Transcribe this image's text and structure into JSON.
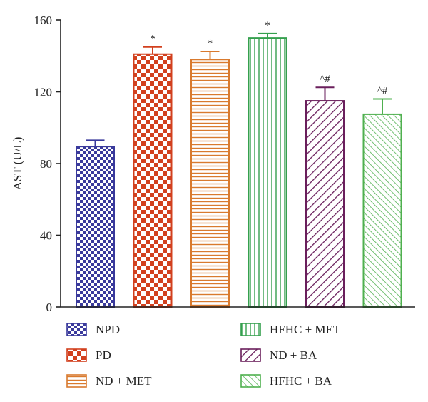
{
  "chart_data": {
    "type": "bar",
    "ylabel": "AST (U/L)",
    "xlabel": "",
    "ylim": [
      0,
      160
    ],
    "yticks": [
      0,
      40,
      80,
      120,
      160
    ],
    "grid": false,
    "legend_position": "bottom",
    "categories": [
      "NPD",
      "PD",
      "ND + MET",
      "HFHC + MET",
      "ND + BA",
      "HFHC + BA"
    ],
    "values": [
      89.5,
      141,
      138,
      150,
      115,
      107.5
    ],
    "errors": [
      3.5,
      4,
      4.5,
      2.5,
      7.5,
      8.5
    ],
    "annotations": [
      "",
      "*",
      "*",
      "*",
      "^#",
      "^#"
    ],
    "colors": [
      "#3a3a9c",
      "#d2401e",
      "#d97a2e",
      "#35a04e",
      "#6a1f5c",
      "#4fb04f"
    ],
    "patterns": [
      "checker-small",
      "checker-large",
      "horizontal-lines",
      "vertical-lines",
      "diagonal-forward",
      "diagonal-back"
    ]
  }
}
